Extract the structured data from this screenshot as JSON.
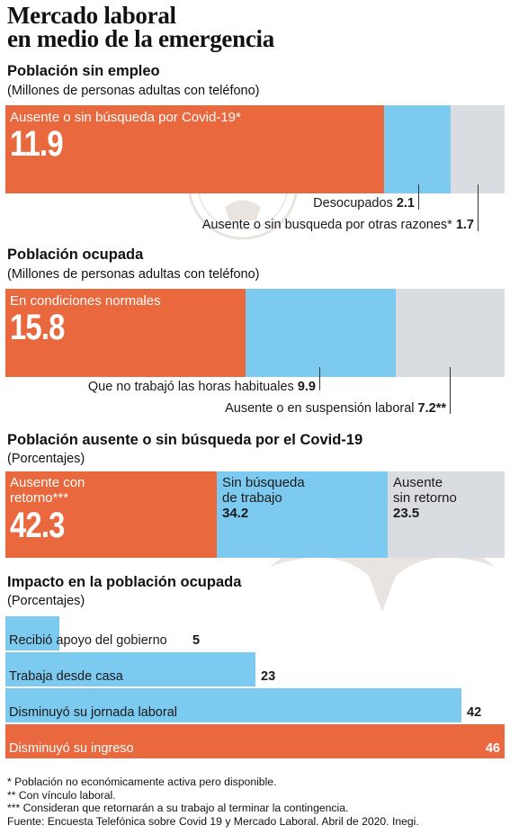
{
  "title_line1": "Mercado laboral",
  "title_line2": "en medio de la emergencia",
  "colors": {
    "orange": "#e9683d",
    "blue": "#7ccaf0",
    "grey": "#d9dde1"
  },
  "chart_data": [
    {
      "type": "bar",
      "layout": "stacked-horizontal",
      "title": "Población sin empleo",
      "subtitle": "(Millones de personas adultas con teléfono)",
      "segments": [
        {
          "label": "Ausente o sin búsqueda por Covid-19*",
          "value": 11.9,
          "value_text": "11.9",
          "color": "#e9683d"
        },
        {
          "label": "Desocupados",
          "value": 2.1,
          "value_text": "2.1",
          "color": "#7ccaf0"
        },
        {
          "label": "Ausente o sin busqueda por otras razones*",
          "value": 1.7,
          "value_text": "1.7",
          "color": "#d9dde1"
        }
      ]
    },
    {
      "type": "bar",
      "layout": "stacked-horizontal",
      "title": "Población ocupada",
      "subtitle": "(Millones de personas adultas con teléfono)",
      "segments": [
        {
          "label": "En condiciones normales",
          "value": 15.8,
          "value_text": "15.8",
          "color": "#e9683d"
        },
        {
          "label": "Que no trabajó las horas habituales",
          "value": 9.9,
          "value_text": "9.9",
          "color": "#7ccaf0"
        },
        {
          "label": "Ausente o en suspensión laboral",
          "value": 7.2,
          "value_text": "7.2**",
          "color": "#d9dde1"
        }
      ]
    },
    {
      "type": "bar",
      "layout": "stacked-horizontal",
      "title": "Población ausente  o sin búsqueda por el Covid-19",
      "subtitle": "(Porcentajes)",
      "segments": [
        {
          "label_line1": "Ausente con",
          "label_line2": "retorno***",
          "value": 42.3,
          "value_text": "42.3",
          "color": "#e9683d"
        },
        {
          "label_line1": "Sin búsqueda",
          "label_line2": "de trabajo",
          "value": 34.2,
          "value_text": "34.2",
          "color": "#7ccaf0"
        },
        {
          "label_line1": "Ausente",
          "label_line2": "sin retorno",
          "value": 23.5,
          "value_text": "23.5",
          "color": "#d9dde1"
        }
      ]
    },
    {
      "type": "bar",
      "layout": "horizontal",
      "title": "Impacto en la población ocupada",
      "subtitle": "(Porcentajes)",
      "categories": [
        "Recibió apoyo del gobierno",
        "Trabaja desde casa",
        "Disminuyó su jornada laboral",
        "Disminuyó su ingreso"
      ],
      "values": [
        5,
        23,
        42,
        46
      ],
      "colors": [
        "#7ccaf0",
        "#7ccaf0",
        "#7ccaf0",
        "#e9683d"
      ],
      "xlim": [
        0,
        46
      ]
    }
  ],
  "footnotes": [
    "* Población no económicamente activa pero disponible.",
    "** Con vínculo laboral.",
    "*** Consideran que retornarán a su trabajo al terminar la contingencia.",
    "Fuente: Encuesta Telefónica sobre Covid 19 y Mercado Laboral. Abril de 2020. Inegi."
  ]
}
